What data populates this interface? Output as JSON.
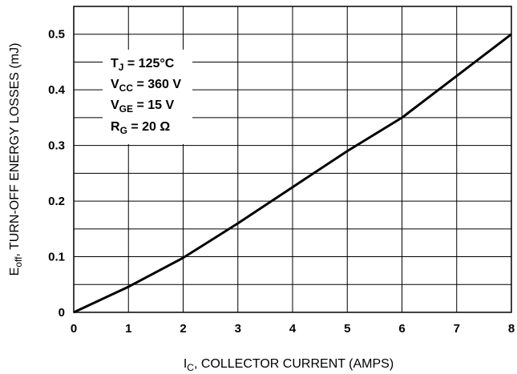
{
  "chart_data": {
    "type": "line",
    "x_ticks": [
      "0",
      "1",
      "2",
      "3",
      "4",
      "5",
      "6",
      "7",
      "8"
    ],
    "y_ticks": [
      "0",
      "0.1",
      "0.2",
      "0.3",
      "0.4",
      "0.5"
    ],
    "xlim": [
      0,
      8
    ],
    "ylim": [
      0,
      0.55
    ],
    "grid": true,
    "xlabel": {
      "main": "I",
      "sub": "C",
      "rest": ", COLLECTOR CURRENT (AMPS)"
    },
    "ylabel": {
      "main": "E",
      "sub": "off",
      "rest": ", TURN-OFF ENERGY LOSSES (mJ)"
    },
    "conditions": [
      {
        "main": "T",
        "sub": "J",
        "rest": " = 125°C"
      },
      {
        "main": "V",
        "sub": "CC",
        "rest": " = 360 V"
      },
      {
        "main": "V",
        "sub": "GE",
        "rest": " = 15 V"
      },
      {
        "main": "R",
        "sub": "G",
        "rest": " = 20 Ω"
      }
    ],
    "series": [
      {
        "x": [
          0,
          1,
          2,
          3,
          4,
          5,
          6,
          7,
          8
        ],
        "y": [
          0,
          0.046,
          0.098,
          0.16,
          0.225,
          0.29,
          0.35,
          0.425,
          0.5
        ]
      }
    ]
  }
}
